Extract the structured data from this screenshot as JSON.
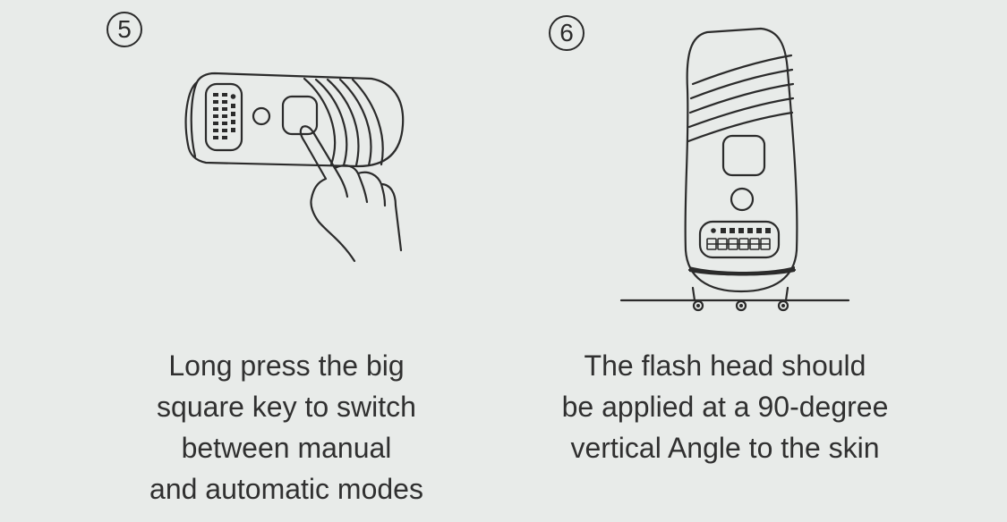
{
  "steps": [
    {
      "number": "5",
      "caption_lines": [
        "Long press the big",
        "square key to switch",
        "between manual",
        "and automatic modes"
      ],
      "illustration_icon": "hand-pressing-device-button-icon"
    },
    {
      "number": "6",
      "caption_lines": [
        "The flash head should",
        "be applied at a 90-degree",
        "vertical Angle to the skin"
      ],
      "illustration_icon": "device-perpendicular-to-skin-icon"
    }
  ],
  "colors": {
    "background": "#e8ebe9",
    "line": "#2b2b2b",
    "text": "#303030"
  }
}
